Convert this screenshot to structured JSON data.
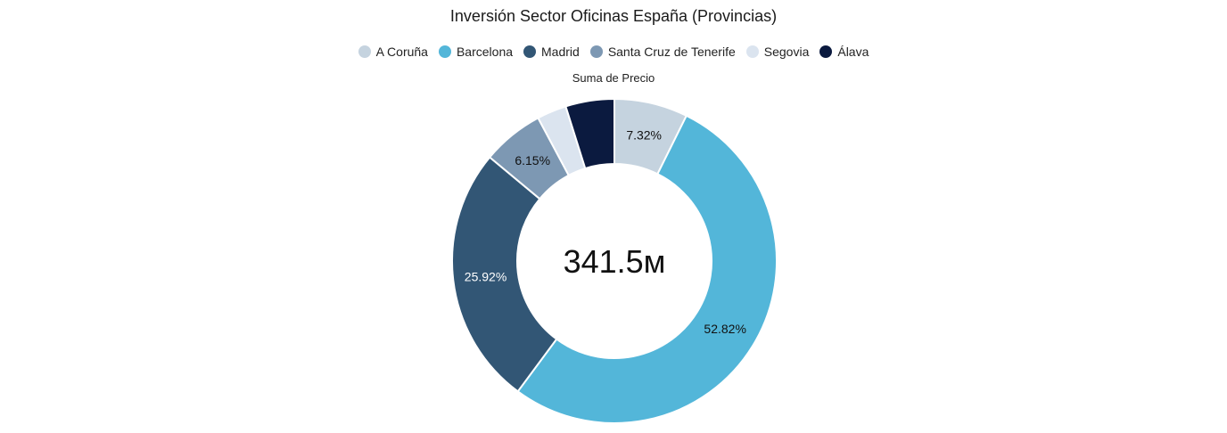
{
  "chart_data": {
    "type": "pie",
    "title": "Inversión Sector Oficinas España (Provincias)",
    "measure_label": "Suma de Precio",
    "center_total": "341.5м",
    "legend_position": "top",
    "categories": [
      "A Coruña",
      "Barcelona",
      "Madrid",
      "Santa Cruz de Tenerife",
      "Segovia",
      "Álava"
    ],
    "slice_order": [
      "A Coruña",
      "Barcelona",
      "Madrid",
      "Santa Cruz de Tenerife",
      "Segovia",
      "Álava"
    ],
    "values_percent": [
      7.32,
      52.82,
      25.92,
      6.15,
      2.94,
      4.85
    ],
    "data_labels": [
      "7.32%",
      "52.82%",
      "25.92%",
      "6.15%",
      "",
      ""
    ],
    "colors": [
      "#c5d3df",
      "#53b6d9",
      "#325675",
      "#7d98b3",
      "#dbe4ef",
      "#0b1a3f"
    ],
    "label_colors": [
      "#111111",
      "#111111",
      "#ffffff",
      "#111111",
      "#111111",
      "#ffffff"
    ]
  }
}
